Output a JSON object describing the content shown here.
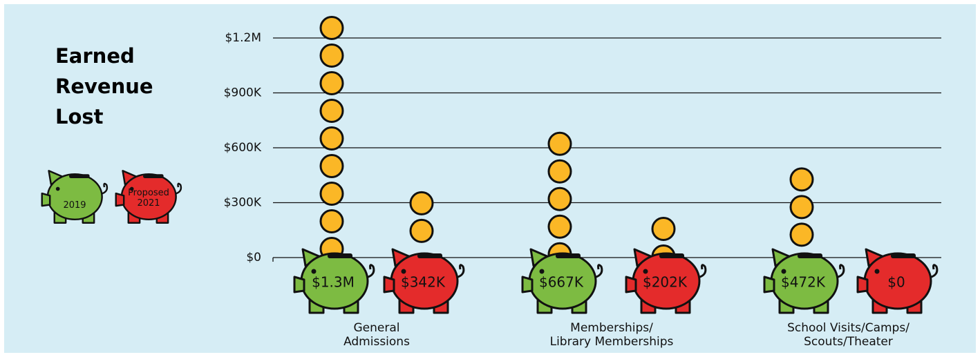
{
  "chart_data": {
    "type": "piggy-bar",
    "title": "Earned\nRevenue\nLost",
    "categories": [
      "General\nAdmissions",
      "Memberships/\nLibrary Memberships",
      "School Visits/Camps/\nScouts/Theater"
    ],
    "series": [
      {
        "name": "2019",
        "color": "#7dbb42",
        "values": [
          1300000,
          667000,
          472000
        ],
        "value_labels": [
          "$1.3M",
          "$667K",
          "$472K"
        ]
      },
      {
        "name": "Proposed 2021",
        "color": "#e42b2b",
        "values": [
          342000,
          202000,
          0
        ],
        "value_labels": [
          "$342K",
          "$202K",
          "$0"
        ]
      }
    ],
    "coin_color": "#fbb726",
    "ylim": [
      0,
      1200000
    ],
    "yticks": [
      {
        "value": 0,
        "label": "$0"
      },
      {
        "value": 300000,
        "label": "$300K"
      },
      {
        "value": 600000,
        "label": "$600K"
      },
      {
        "value": 900000,
        "label": "$900K"
      },
      {
        "value": 1200000,
        "label": "$1.2M"
      }
    ],
    "grid": true
  }
}
